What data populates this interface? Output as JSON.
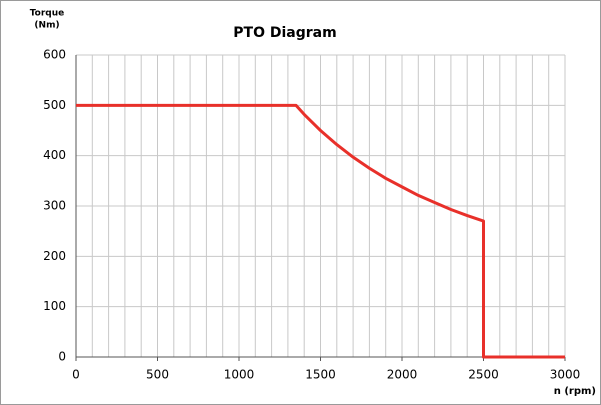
{
  "chart_data": {
    "type": "line",
    "title": "PTO Diagram",
    "ylabel": [
      "Torque",
      "(Nm)"
    ],
    "xlabel": "n (rpm)",
    "x": [
      0,
      1350,
      1400,
      1500,
      1600,
      1700,
      1800,
      1900,
      2000,
      2100,
      2200,
      2300,
      2400,
      2500,
      2500,
      3000
    ],
    "series": [
      {
        "name": "Torque",
        "color": "#e8302a",
        "values": [
          500,
          500,
          482,
          450,
          422,
          397,
          375,
          355,
          338,
          321,
          307,
          293,
          281,
          270,
          0,
          0
        ]
      }
    ],
    "xlim": [
      0,
      3000
    ],
    "xticks": [
      0,
      500,
      1000,
      1500,
      2000,
      2500,
      3000
    ],
    "xgrid_minor": [
      0,
      100,
      200,
      300,
      400,
      500,
      600,
      700,
      800,
      900,
      1000,
      1100,
      1200,
      1300,
      1400,
      1500,
      1600,
      1700,
      1800,
      1900,
      2000,
      2100,
      2200,
      2300,
      2400,
      2500,
      2600,
      2700,
      2800,
      2900,
      3000
    ],
    "ylim": [
      0,
      600
    ],
    "yticks": [
      0,
      100,
      200,
      300,
      400,
      500,
      600
    ],
    "grid": true
  }
}
